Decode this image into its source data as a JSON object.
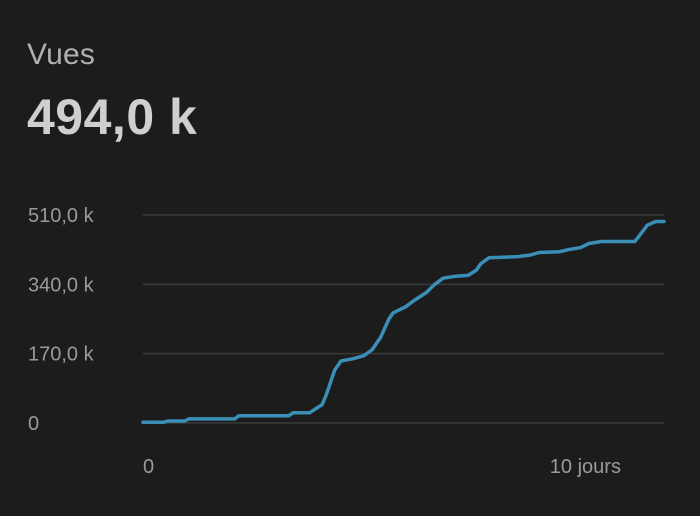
{
  "card": {
    "label": "Vues",
    "value": "494,0 k"
  },
  "colors": {
    "background": "#1c1c1c",
    "line": "#3a8fb7",
    "grid": "#3a3a3a",
    "text": "#9a9a9a"
  },
  "chart_data": {
    "type": "line",
    "title": "",
    "xlabel": "",
    "ylabel": "",
    "grid": true,
    "xlim": [
      0,
      12.5
    ],
    "ylim": [
      0,
      510
    ],
    "y_ticks": [
      {
        "value": 0,
        "label": "0"
      },
      {
        "value": 170,
        "label": "170,0 k"
      },
      {
        "value": 340,
        "label": "340,0 k"
      },
      {
        "value": 510,
        "label": "510,0 k"
      }
    ],
    "x_ticks": [
      {
        "value": 0,
        "label": "0"
      },
      {
        "value": 10,
        "label": "10 jours"
      }
    ],
    "series": [
      {
        "x": [
          0,
          0.5,
          0.6,
          1.0,
          1.1,
          2.2,
          2.3,
          3.5,
          3.6,
          4.0,
          4.1,
          4.3,
          4.4,
          4.6,
          4.75,
          4.9,
          5.05,
          5.3,
          5.5,
          5.7,
          5.9,
          6.0,
          6.2,
          6.3,
          6.5,
          6.8,
          7.0,
          7.2,
          7.5,
          7.8,
          8.0,
          8.1,
          8.3,
          9.0,
          9.3,
          9.5,
          10.0,
          10.2,
          10.5,
          10.7,
          11.0,
          11.8,
          11.9,
          12.1,
          12.3,
          12.5
        ],
        "values": [
          2,
          2,
          5,
          5,
          10,
          10,
          18,
          18,
          25,
          25,
          32,
          45,
          70,
          130,
          152,
          155,
          158,
          165,
          180,
          210,
          255,
          270,
          280,
          285,
          300,
          320,
          340,
          355,
          360,
          362,
          375,
          390,
          405,
          408,
          412,
          418,
          420,
          425,
          430,
          440,
          445,
          445,
          458,
          485,
          494,
          494
        ]
      }
    ]
  }
}
